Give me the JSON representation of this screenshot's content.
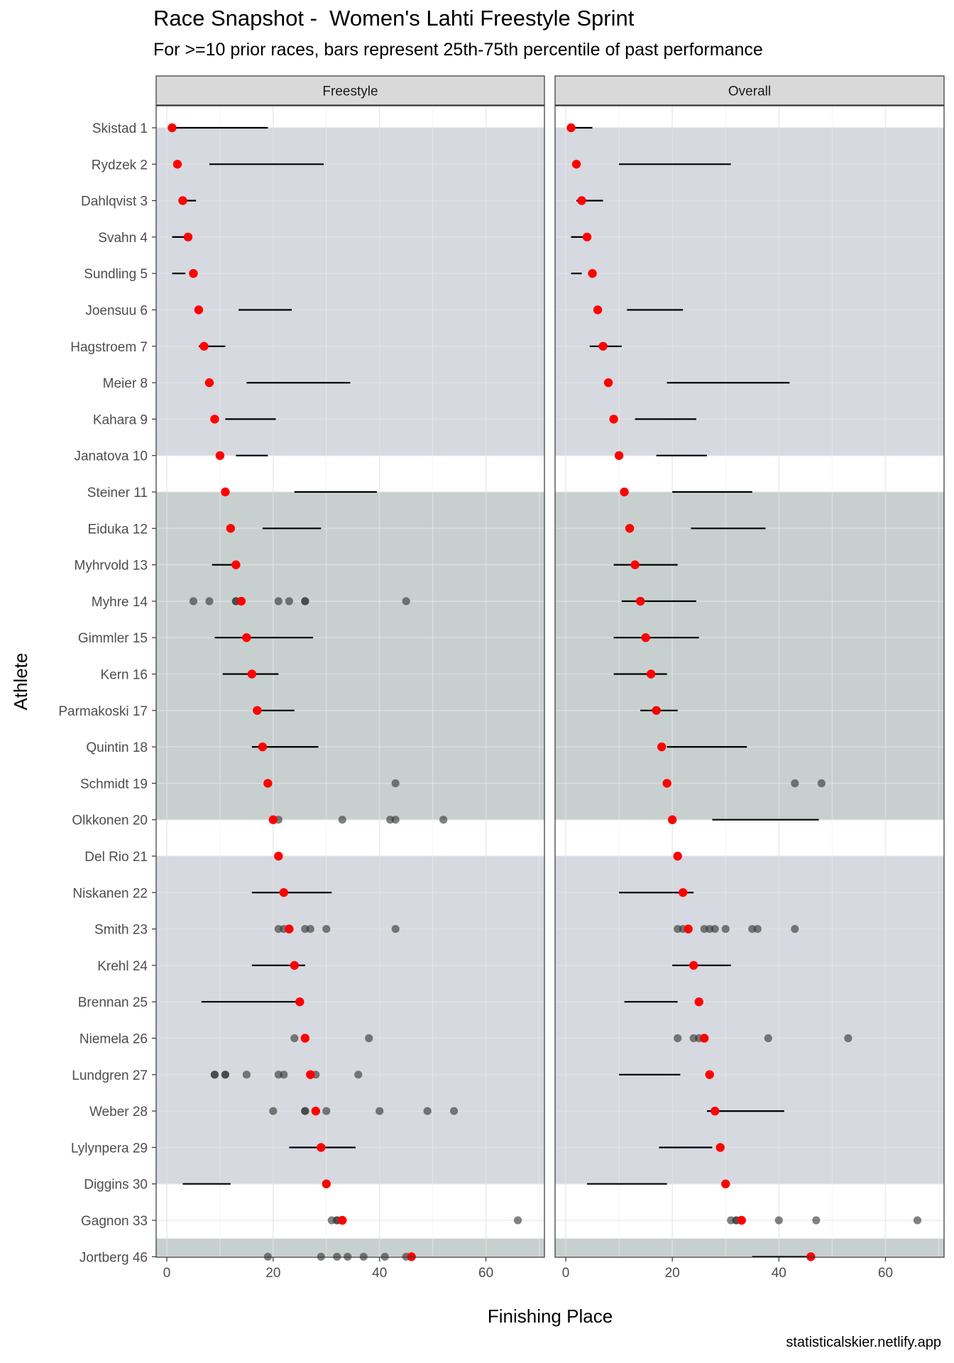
{
  "chart_data": {
    "type": "scatter",
    "title": "Race Snapshot -  Women's Lahti Freestyle Sprint",
    "subtitle": "For >=10 prior races, bars represent 25th-75th percentile of past performance",
    "caption": "statisticalskier.netlify.app",
    "xlabel": "Finishing Place",
    "ylabel": "Athlete",
    "xlim": [
      -2,
      71
    ],
    "xticks": [
      0,
      20,
      40,
      60
    ],
    "grid": true,
    "panels": [
      "Freestyle",
      "Overall"
    ],
    "colors": {
      "current": "#ff0000",
      "past": "#333333",
      "band_a": "#d6d9df",
      "band_b": "#c8d0cf",
      "strip_fill": "#d9d9d9",
      "grid": "#ebebeb"
    },
    "bands": [
      {
        "from": "Skistad 1",
        "to": "Janatova 10",
        "color": "band_a"
      },
      {
        "from": "Steiner 11",
        "to": "Olkkonen 20",
        "color": "band_b"
      },
      {
        "from": "Del Rio 21",
        "to": "Diggins 30",
        "color": "band_a"
      },
      {
        "from": "Jortberg 46",
        "to": "Jortberg 46",
        "color": "band_b"
      }
    ],
    "athletes": [
      "Skistad 1",
      "Rydzek 2",
      "Dahlqvist 3",
      "Svahn 4",
      "Sundling 5",
      "Joensuu 6",
      "Hagstroem 7",
      "Meier 8",
      "Kahara 9",
      "Janatova 10",
      "Steiner 11",
      "Eiduka 12",
      "Myhrvold 13",
      "Myhre 14",
      "Gimmler 15",
      "Kern 16",
      "Parmakoski 17",
      "Quintin 18",
      "Schmidt 19",
      "Olkkonen 20",
      "Del Rio 21",
      "Niskanen 22",
      "Smith 23",
      "Krehl 24",
      "Brennan 25",
      "Niemela 26",
      "Lundgren 27",
      "Weber 28",
      "Lylynpera 29",
      "Diggins 30",
      "Gagnon 33",
      "Jortberg 46"
    ],
    "place": [
      1,
      2,
      3,
      4,
      5,
      6,
      7,
      8,
      9,
      10,
      11,
      12,
      13,
      14,
      15,
      16,
      17,
      18,
      19,
      20,
      21,
      22,
      23,
      24,
      25,
      26,
      27,
      28,
      29,
      30,
      33,
      46
    ],
    "ranges": {
      "Freestyle": [
        [
          1,
          19
        ],
        [
          8,
          29.5
        ],
        [
          2.5,
          5.5
        ],
        [
          1,
          3.5
        ],
        [
          1,
          3.5
        ],
        [
          13.5,
          23.5
        ],
        [
          6,
          11
        ],
        [
          15,
          34.5
        ],
        [
          11,
          20.5
        ],
        [
          13,
          19
        ],
        [
          24,
          39.5
        ],
        [
          18,
          29
        ],
        [
          8.5,
          13.5
        ],
        null,
        [
          9,
          27.5
        ],
        [
          10.5,
          21
        ],
        [
          17.5,
          24
        ],
        [
          16,
          28.5
        ],
        null,
        null,
        null,
        [
          16,
          31
        ],
        null,
        [
          16,
          26
        ],
        [
          6.5,
          25
        ],
        null,
        null,
        null,
        [
          23,
          35.5
        ],
        [
          3,
          12
        ],
        null,
        null
      ],
      "Overall": [
        [
          1,
          5
        ],
        [
          10,
          31
        ],
        [
          2,
          7
        ],
        [
          1,
          3.5
        ],
        [
          1,
          3
        ],
        [
          11.5,
          22
        ],
        [
          4.5,
          10.5
        ],
        [
          19,
          42
        ],
        [
          13,
          24.5
        ],
        [
          17,
          26.5
        ],
        [
          20,
          35
        ],
        [
          23.5,
          37.5
        ],
        [
          9,
          21
        ],
        [
          10.5,
          24.5
        ],
        [
          9,
          25
        ],
        [
          9,
          19
        ],
        [
          14,
          21
        ],
        [
          19,
          34
        ],
        null,
        [
          27.5,
          47.5
        ],
        null,
        [
          10,
          24
        ],
        null,
        [
          20,
          31
        ],
        [
          11,
          21
        ],
        null,
        [
          10,
          21.5
        ],
        [
          26.5,
          41
        ],
        [
          17.5,
          27.5
        ],
        [
          4,
          19
        ],
        null,
        [
          35,
          46
        ]
      ]
    },
    "past_results": {
      "Freestyle": {
        "Myhre 14": [
          5,
          8,
          13,
          13,
          21,
          23,
          26,
          26,
          45
        ],
        "Schmidt 19": [
          43
        ],
        "Olkkonen 20": [
          21,
          33,
          42,
          43,
          52
        ],
        "Smith 23": [
          21,
          22,
          26,
          27,
          30,
          43
        ],
        "Niemela 26": [
          24,
          38
        ],
        "Lundgren 27": [
          9,
          9,
          11,
          11,
          15,
          21,
          22,
          28,
          36
        ],
        "Weber 28": [
          20,
          26,
          26,
          30,
          40,
          49,
          54
        ],
        "Gagnon 33": [
          31,
          32,
          32,
          66
        ],
        "Jortberg 46": [
          19,
          29,
          32,
          34,
          37,
          41,
          45
        ]
      },
      "Overall": {
        "Schmidt 19": [
          43,
          48
        ],
        "Smith 23": [
          21,
          22,
          26,
          27,
          28,
          30,
          35,
          36,
          43
        ],
        "Niemela 26": [
          21,
          24,
          25,
          38,
          53
        ],
        "Gagnon 33": [
          31,
          32,
          32,
          40,
          47,
          66
        ]
      }
    }
  }
}
